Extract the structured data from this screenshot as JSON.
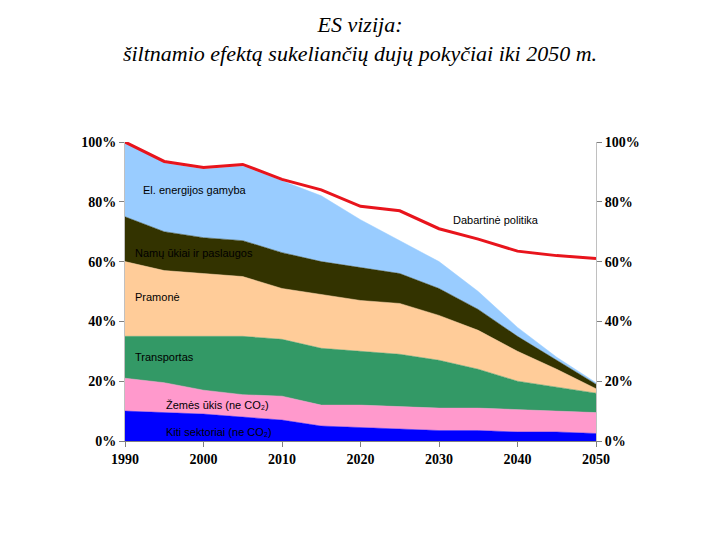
{
  "chart_data": {
    "type": "area",
    "stacked": true,
    "title": "ES vizija:",
    "subtitle": "šiltnamio efektą sukeliančių dujų pokyčiai iki 2050 m.",
    "x": [
      1990,
      1995,
      2000,
      2005,
      2010,
      2015,
      2020,
      2025,
      2030,
      2035,
      2040,
      2045,
      2050
    ],
    "series": [
      {
        "name": "Kiti sektoriai (ne CO₂)",
        "color": "#0000ff",
        "values": [
          10,
          9.5,
          9,
          8,
          7,
          5,
          4.5,
          4,
          3.5,
          3.5,
          3,
          3,
          2.5
        ]
      },
      {
        "name": "Žemės ūkis (ne CO₂)",
        "color": "#ff99cc",
        "values": [
          11,
          10,
          8,
          7.5,
          8,
          7,
          7.5,
          7.5,
          7.5,
          7.5,
          7.5,
          7,
          7
        ]
      },
      {
        "name": "Transportas",
        "color": "#339966",
        "values": [
          14,
          15.5,
          18,
          19.5,
          19,
          19,
          18,
          17.5,
          16,
          13,
          9.5,
          8,
          6.5
        ]
      },
      {
        "name": "Pramonė",
        "color": "#ffcc99",
        "values": [
          25,
          22,
          21,
          20,
          17,
          18,
          17,
          17,
          15,
          13,
          10,
          6,
          1.5
        ]
      },
      {
        "name": "Namų ūkiai ir paslaugos",
        "color": "#333300",
        "values": [
          15,
          13,
          12,
          12,
          12,
          11,
          11,
          10,
          9,
          7,
          5,
          3,
          1.5
        ]
      },
      {
        "name": "El. energijos gamyba",
        "color": "#99ccff",
        "values": [
          25,
          23,
          23,
          25,
          24,
          22,
          16,
          11,
          9,
          6,
          3,
          1,
          0.5
        ]
      },
      {
        "name": "Dabartinė politika",
        "color": "#e8141c",
        "type": "line",
        "values": [
          100,
          93.5,
          91.5,
          92.5,
          87.5,
          84,
          78.5,
          77,
          71,
          67.5,
          63.5,
          62,
          61
        ]
      }
    ],
    "xlim": [
      1990,
      2050
    ],
    "xticks": [
      1990,
      2000,
      2010,
      2020,
      2030,
      2040,
      2050
    ],
    "ylim": [
      0,
      100
    ],
    "yticks": [
      {
        "value": 0,
        "label": "0%"
      },
      {
        "value": 20,
        "label": "20%"
      },
      {
        "value": 40,
        "label": "40%"
      },
      {
        "value": 60,
        "label": "60%"
      },
      {
        "value": 80,
        "label": "80%"
      },
      {
        "value": 100,
        "label": "100%"
      }
    ],
    "grid": false
  }
}
